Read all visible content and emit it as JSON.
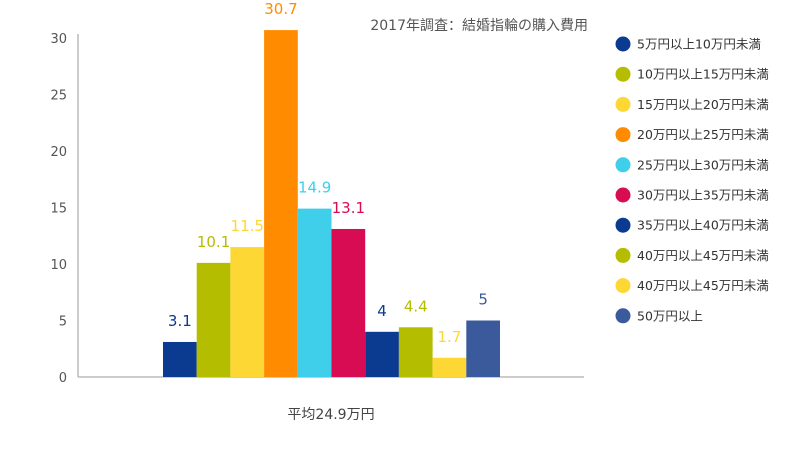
{
  "chart_data": {
    "type": "bar",
    "title": "2017年調査：結婚指輪の購入費用",
    "categories": [
      "平均24.9万円"
    ],
    "xlabel": "",
    "ylabel": "",
    "ylim": [
      0,
      30
    ],
    "yticks": [
      0,
      5,
      10,
      15,
      20,
      25,
      30
    ],
    "grid": false,
    "legend_position": "right",
    "series": [
      {
        "name": "5万円以上10万円未満",
        "values": [
          3.1
        ],
        "label": "3.1",
        "color": "#0b3a91"
      },
      {
        "name": "10万円以上15万円未満",
        "values": [
          10.1
        ],
        "label": "10.1",
        "color": "#b5bd00"
      },
      {
        "name": "15万円以上20万円未満",
        "values": [
          11.5
        ],
        "label": "11.5",
        "color": "#fdd835"
      },
      {
        "name": "20万円以上25万円未満",
        "values": [
          30.7
        ],
        "label": "30.7",
        "color": "#ff8c00"
      },
      {
        "name": "25万円以上30万円未満",
        "values": [
          14.9
        ],
        "label": "14.9",
        "color": "#3fcfea"
      },
      {
        "name": "30万円以上35万円未満",
        "values": [
          13.1
        ],
        "label": "13.1",
        "color": "#d80c52"
      },
      {
        "name": "35万円以上40万円未満",
        "values": [
          4
        ],
        "label": "4",
        "color": "#0b3a91"
      },
      {
        "name": "40万円以上45万円未満",
        "values": [
          4.4
        ],
        "label": "4.4",
        "color": "#b5bd00"
      },
      {
        "name": "40万円以上45万円未満",
        "values": [
          1.7
        ],
        "label": "1.7",
        "color": "#fdd835"
      },
      {
        "name": "50万円以上",
        "values": [
          5
        ],
        "label": "5",
        "color": "#3a5a9c"
      }
    ]
  }
}
